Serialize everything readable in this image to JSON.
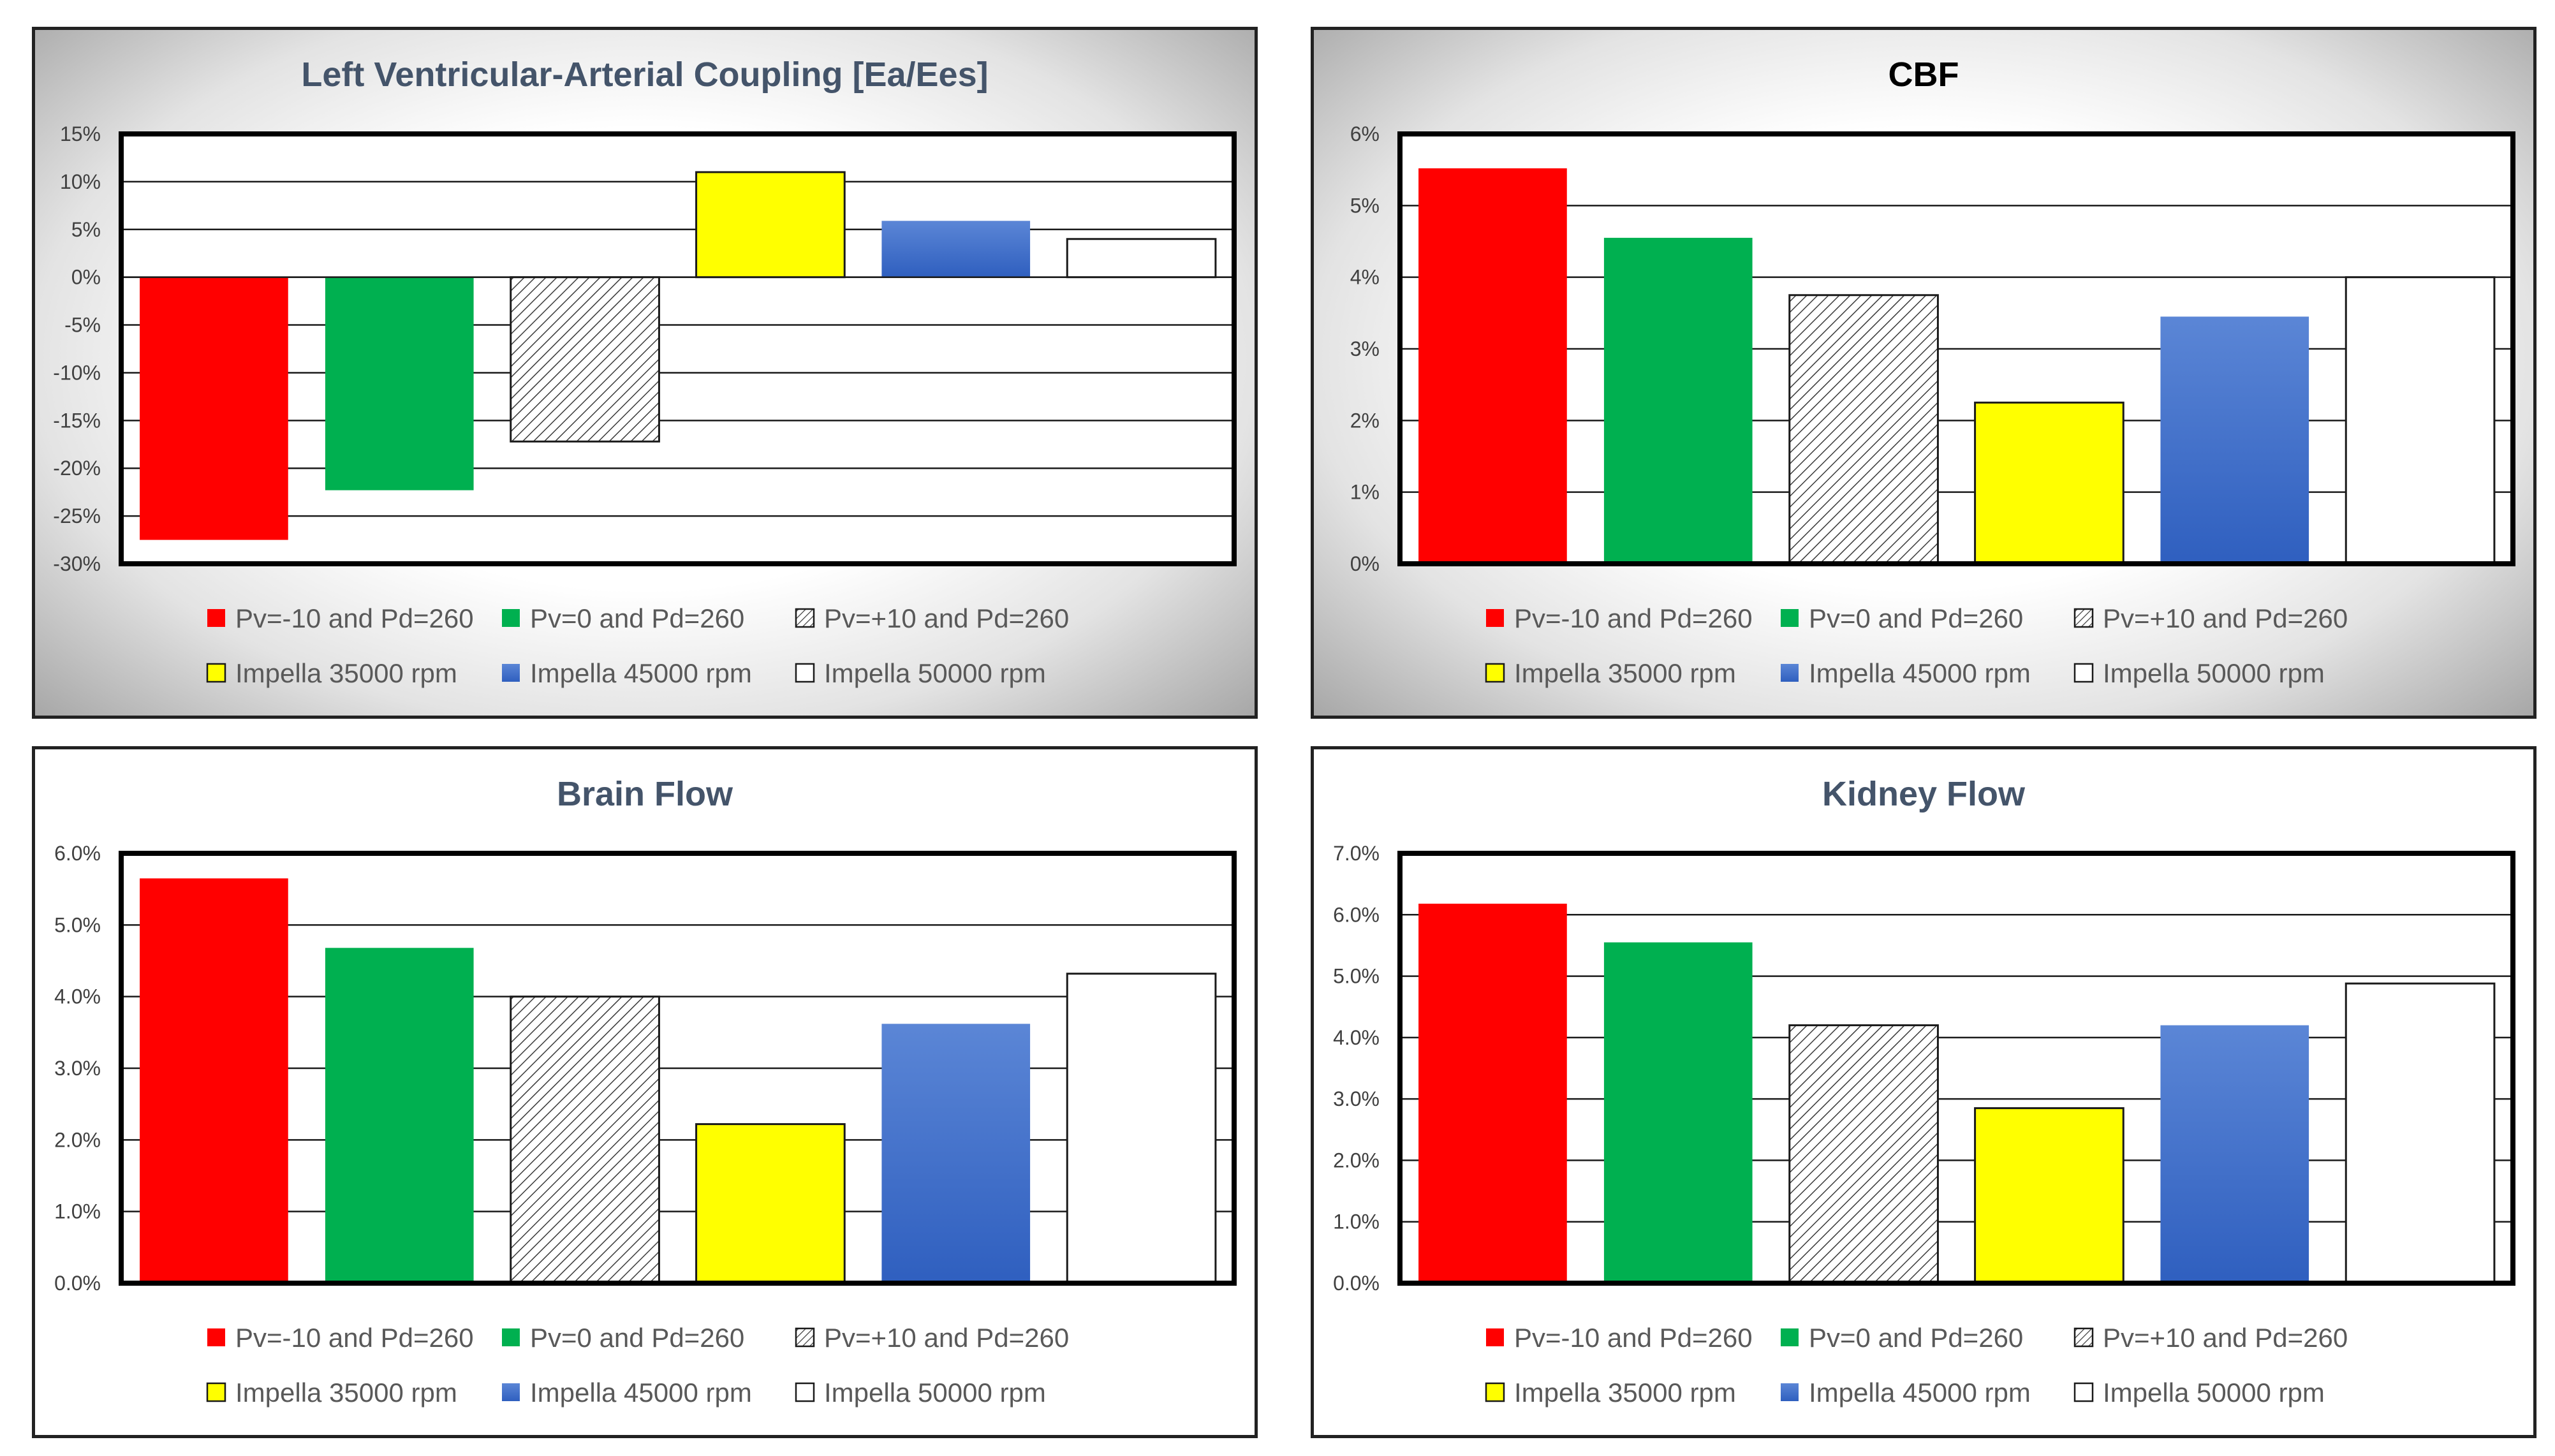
{
  "chart_data": [
    {
      "id": "lvac",
      "type": "bar",
      "title": "Left Ventricular-Arterial  Coupling  [Ea/Ees]",
      "title_color": "#44546a",
      "xlabel": "",
      "ylabel": "",
      "ylim": [
        -30,
        15
      ],
      "ytick_step": 5,
      "ytick_labels": [
        "15%",
        "10%",
        "5%",
        "0%",
        "-5%",
        "-10%",
        "-15%",
        "-20%",
        "-25%",
        "-30%"
      ],
      "grid": true,
      "legend_position": "bottom",
      "series": [
        {
          "name": "Pv=-10 and Pd=260",
          "value": -27.5
        },
        {
          "name": "Pv=0 and Pd=260",
          "value": -22.3
        },
        {
          "name": "Pv=+10 and Pd=260",
          "value": -17.2
        },
        {
          "name": "Impella 35000 rpm",
          "value": 11.0
        },
        {
          "name": "Impella 45000 rpm",
          "value": 5.9
        },
        {
          "name": "Impella 50000 rpm",
          "value": 4.0
        }
      ]
    },
    {
      "id": "cbf",
      "type": "bar",
      "title": "CBF",
      "title_color": "#000000",
      "xlabel": "",
      "ylabel": "",
      "ylim": [
        0,
        6
      ],
      "ytick_step": 1,
      "ytick_labels": [
        "6%",
        "5%",
        "4%",
        "3%",
        "2%",
        "1%",
        "0%"
      ],
      "grid": true,
      "legend_position": "bottom",
      "series": [
        {
          "name": "Pv=-10 and Pd=260",
          "value": 5.52
        },
        {
          "name": "Pv=0 and Pd=260",
          "value": 4.55
        },
        {
          "name": "Pv=+10 and Pd=260",
          "value": 3.75
        },
        {
          "name": "Impella 35000 rpm",
          "value": 2.25
        },
        {
          "name": "Impella 45000 rpm",
          "value": 3.45
        },
        {
          "name": "Impella 50000 rpm",
          "value": 4.0
        }
      ]
    },
    {
      "id": "brain",
      "type": "bar",
      "title": "Brain Flow",
      "title_color": "#44546a",
      "xlabel": "",
      "ylabel": "",
      "ylim": [
        0,
        6
      ],
      "ytick_step": 1,
      "ytick_labels": [
        "6.0%",
        "5.0%",
        "4.0%",
        "3.0%",
        "2.0%",
        "1.0%",
        "0.0%"
      ],
      "grid": true,
      "legend_position": "bottom",
      "series": [
        {
          "name": "Pv=-10 and Pd=260",
          "value": 5.65
        },
        {
          "name": "Pv=0 and Pd=260",
          "value": 4.68
        },
        {
          "name": "Pv=+10 and Pd=260",
          "value": 4.0
        },
        {
          "name": "Impella 35000 rpm",
          "value": 2.22
        },
        {
          "name": "Impella 45000 rpm",
          "value": 3.62
        },
        {
          "name": "Impella 50000 rpm",
          "value": 4.32
        }
      ]
    },
    {
      "id": "kidney",
      "type": "bar",
      "title": "Kidney Flow",
      "title_color": "#44546a",
      "xlabel": "",
      "ylabel": "",
      "ylim": [
        0,
        7
      ],
      "ytick_step": 1,
      "ytick_labels": [
        "7.0%",
        "6.0%",
        "5.0%",
        "4.0%",
        "3.0%",
        "2.0%",
        "1.0%",
        "0.0%"
      ],
      "grid": true,
      "legend_position": "bottom",
      "series": [
        {
          "name": "Pv=-10 and Pd=260",
          "value": 6.18
        },
        {
          "name": "Pv=0 and Pd=260",
          "value": 5.55
        },
        {
          "name": "Pv=+10 and Pd=260",
          "value": 4.2
        },
        {
          "name": "Impella 35000 rpm",
          "value": 2.85
        },
        {
          "name": "Impella 45000 rpm",
          "value": 4.2
        },
        {
          "name": "Impella 50000 rpm",
          "value": 4.88
        }
      ]
    }
  ],
  "series_styles": [
    {
      "fill": "#ff0000",
      "pattern": "none"
    },
    {
      "fill": "#00b050",
      "pattern": "none"
    },
    {
      "fill": "#ffffff",
      "pattern": "diagonal-hatch"
    },
    {
      "fill": "#ffff00",
      "pattern": "none"
    },
    {
      "fill": "#4472c4",
      "pattern": "none"
    },
    {
      "fill": "#ffffff",
      "pattern": "none"
    }
  ]
}
